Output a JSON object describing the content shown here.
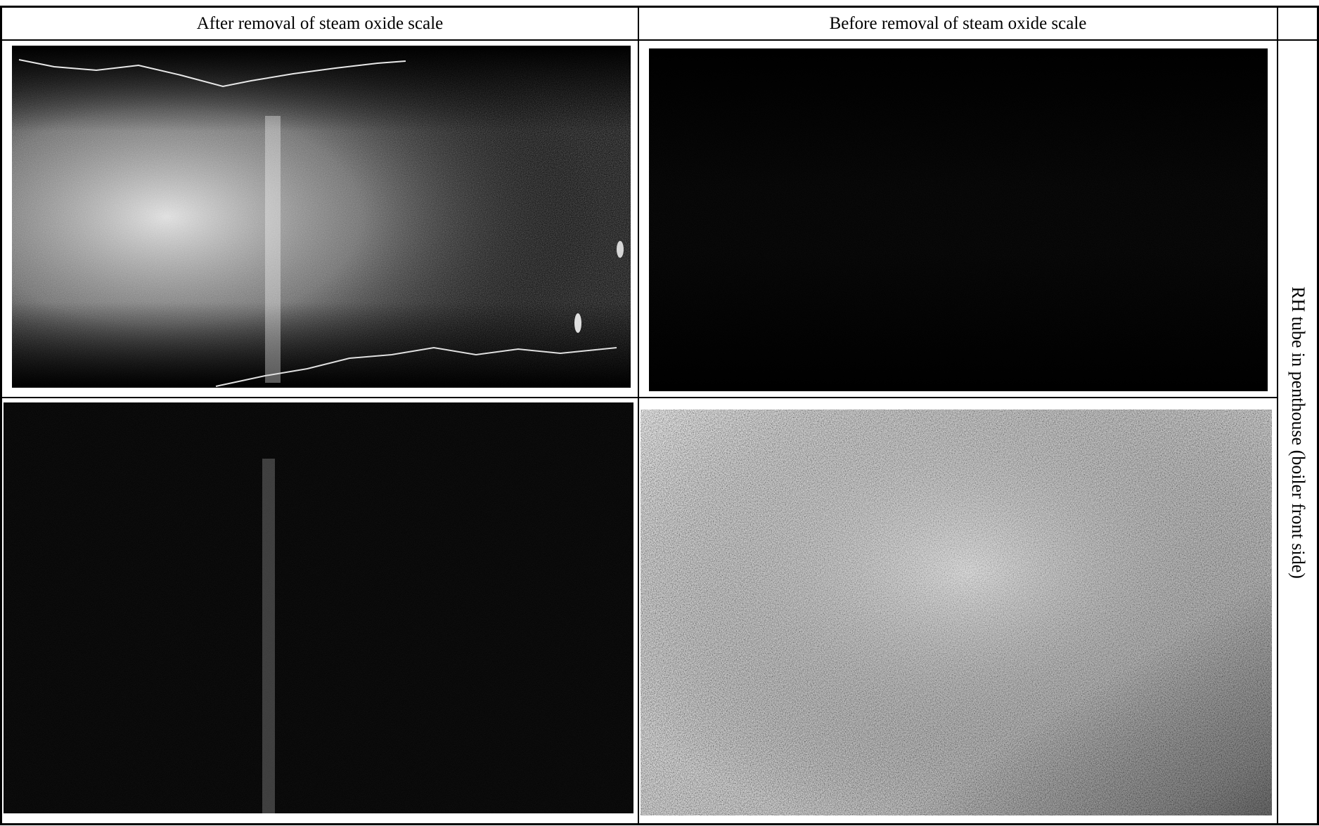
{
  "table": {
    "header_left": "After removal of steam oxide scale",
    "header_right": "Before removal of steam oxide scale",
    "row_label": "RH tube in penthouse  (boiler front side)"
  },
  "colors": {
    "border": "#000000",
    "background": "#ffffff",
    "photo_base": "#000000"
  }
}
